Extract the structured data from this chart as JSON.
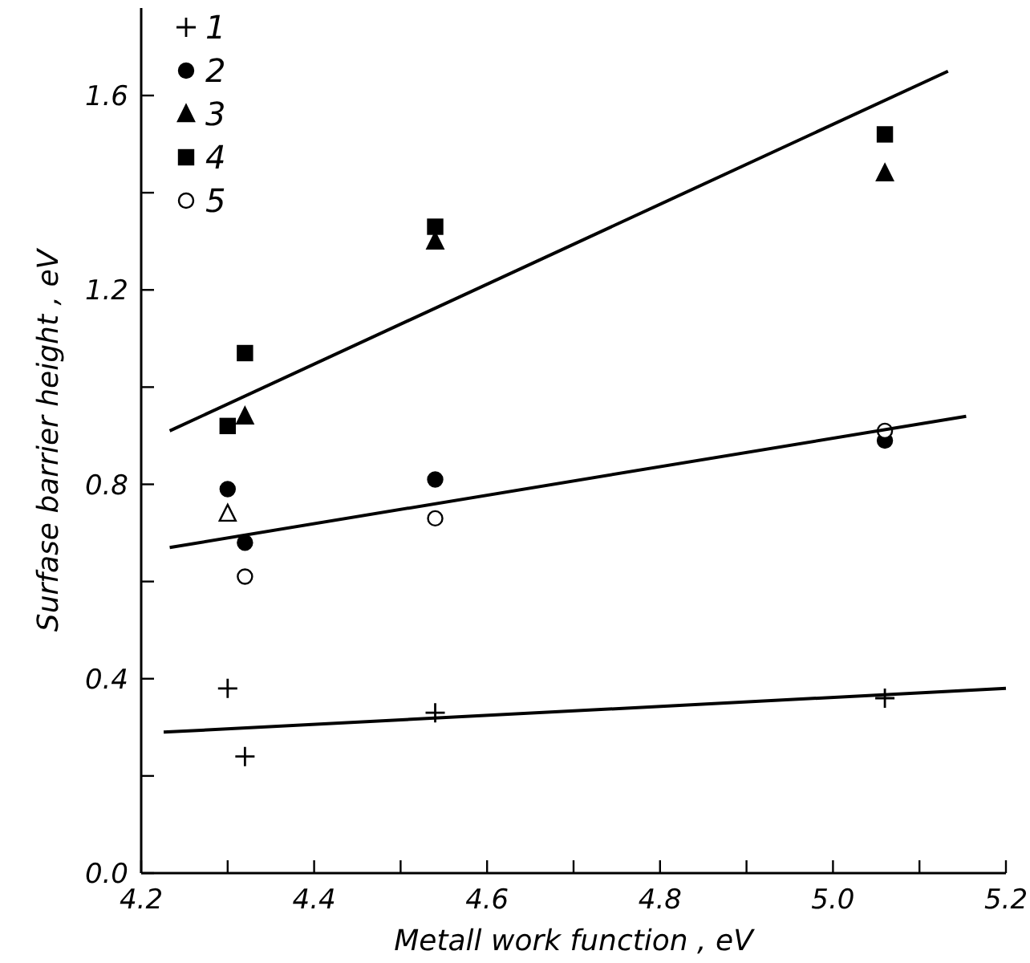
{
  "chart_data": {
    "type": "scatter",
    "xlabel": "Metall work function , eV",
    "ylabel": "Surfase barrier height , eV",
    "xlim": [
      4.2,
      5.2
    ],
    "ylim": [
      0,
      1.78
    ],
    "xticks": [
      4.2,
      {
        "value": 4.3,
        "label": null
      },
      4.4,
      {
        "value": 4.5,
        "label": null
      },
      4.6,
      {
        "value": 4.7,
        "label": null
      },
      4.8,
      {
        "value": 4.9,
        "label": null
      },
      {
        "value": 5.0,
        "label": "5.0"
      },
      {
        "value": 5.1,
        "label": null
      },
      5.2
    ],
    "yticks": [
      {
        "value": 0.0,
        "label": "0.0"
      },
      {
        "value": 0.2,
        "label": null
      },
      0.4,
      {
        "value": 0.6,
        "label": null
      },
      0.8,
      {
        "value": 1.0,
        "label": null
      },
      1.2,
      {
        "value": 1.4,
        "label": null
      },
      1.6
    ],
    "legend": "top left",
    "grid": false,
    "series": [
      {
        "name": "1",
        "marker": "cross",
        "color": "#000000",
        "x": [
          4.3,
          4.32,
          4.54,
          5.06
        ],
        "values": [
          0.38,
          0.24,
          0.33,
          0.36
        ]
      },
      {
        "name": "2",
        "marker": "circle",
        "color": "#000000",
        "x": [
          4.3,
          4.32,
          4.54,
          5.06
        ],
        "values": [
          0.79,
          0.68,
          0.81,
          0.89
        ]
      },
      {
        "name": "3",
        "marker": "triangle",
        "color": "#000000",
        "x": [
          4.32,
          4.54,
          5.06
        ],
        "values": [
          0.94,
          1.3,
          1.44
        ]
      },
      {
        "name": "4",
        "marker": "square",
        "color": "#000000",
        "x": [
          4.3,
          4.32,
          4.54,
          5.06
        ],
        "values": [
          0.92,
          1.07,
          1.33,
          1.52
        ]
      },
      {
        "name": "5",
        "marker": "circle",
        "color": "#ffffff",
        "x": [
          4.32,
          4.54,
          5.06
        ],
        "values": [
          0.61,
          0.73,
          0.91
        ]
      },
      {
        "marker": "triangle",
        "color": "#ffffff",
        "x": [
          4.3
        ],
        "values": [
          0.74
        ]
      },
      {
        "type": "line",
        "marker": "none",
        "line_style": "solid",
        "color": "#000000",
        "x": [
          4.233,
          5.133
        ],
        "values": [
          0.91,
          1.65
        ]
      },
      {
        "type": "line",
        "marker": "none",
        "line_style": "solid",
        "color": "#000000",
        "x": [
          4.233,
          5.154
        ],
        "values": [
          0.67,
          0.94
        ]
      },
      {
        "type": "line",
        "marker": "none",
        "line_style": "solid",
        "color": "#000000",
        "x": [
          4.226,
          5.2
        ],
        "values": [
          0.29,
          0.38
        ]
      }
    ]
  }
}
